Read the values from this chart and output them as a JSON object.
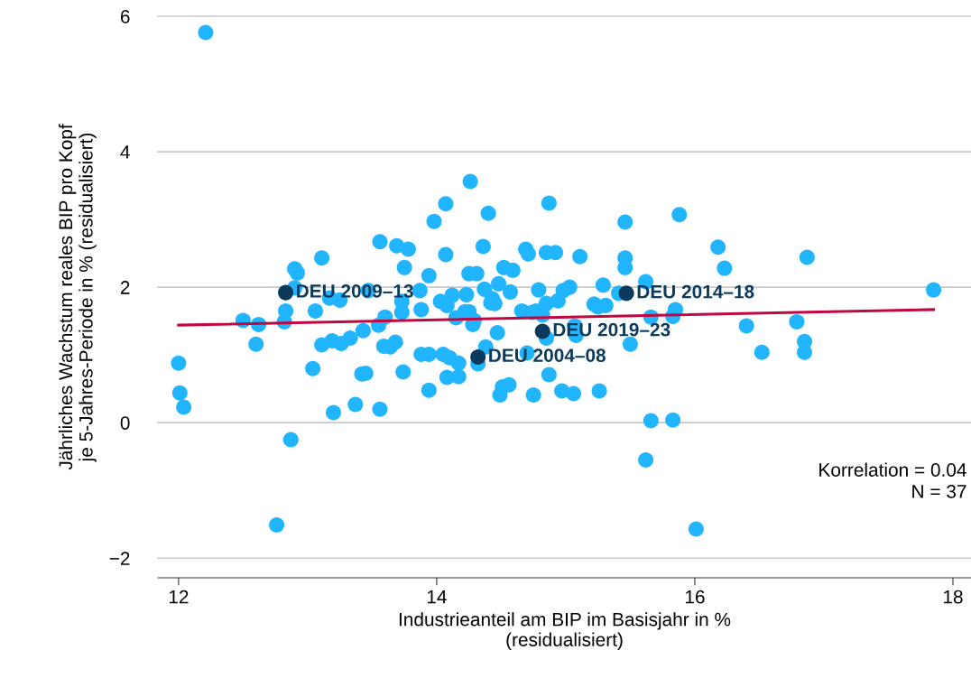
{
  "chart_data": {
    "type": "scatter",
    "xlabel": "Industrieanteil am BIP im Basisjahr in %\n(residualisiert)",
    "ylabel": "Jährliches Wachstum reales BIP pro Kopf\nje 5-Jahres-Periode in % (residualisiert)",
    "xlim": [
      11.84,
      18.14
    ],
    "xticks": [
      12,
      14,
      16,
      18
    ],
    "ylim": [
      -2.29,
      6
    ],
    "yticks": [
      {
        "value": -2,
        "label": "−2"
      },
      0,
      2,
      4,
      6
    ],
    "grid": "y",
    "marker": "circle",
    "series": [
      {
        "color": "#22b5ff",
        "x": [
          12.21,
          12.0,
          12.01,
          12.04,
          12.5,
          12.62,
          12.6,
          12.76,
          12.82,
          12.83,
          12.9,
          12.92,
          12.9,
          12.87,
          13.06,
          13.04,
          13.11,
          13.11,
          13.19,
          13.26,
          13.25,
          13.17,
          13.2,
          13.33,
          13.37,
          13.43,
          13.42,
          13.45,
          13.47,
          13.56,
          13.55,
          13.6,
          13.56,
          13.59,
          13.64,
          13.68,
          13.69,
          13.73,
          13.73,
          13.78,
          13.75,
          13.74,
          13.87,
          13.88,
          13.88,
          13.94,
          13.94,
          13.94,
          13.98,
          14.03,
          14.07,
          14.07,
          14.05,
          14.08,
          14.12,
          14.08,
          14.1,
          14.17,
          14.17,
          14.15,
          14.23,
          14.22,
          14.25,
          14.26,
          14.25,
          14.31,
          14.28,
          14.29,
          14.32,
          14.36,
          14.37,
          14.4,
          14.38,
          14.43,
          14.42,
          14.45,
          14.48,
          14.47,
          14.52,
          14.49,
          14.51,
          14.56,
          14.57,
          14.59,
          14.66,
          14.69,
          14.71,
          14.74,
          14.77,
          14.7,
          14.75,
          14.79,
          14.82,
          14.85,
          14.92,
          14.87,
          14.85,
          14.85,
          14.87,
          14.94,
          14.97,
          14.98,
          15.03,
          15.06,
          15.07,
          15.08,
          15.11,
          15.22,
          15.25,
          15.29,
          15.31,
          15.26,
          15.46,
          15.46,
          15.46,
          15.41,
          15.5,
          15.62,
          15.66,
          15.66,
          15.62,
          15.83,
          15.85,
          15.83,
          15.88,
          16.01,
          16.18,
          16.23,
          16.4,
          16.52,
          16.79,
          16.85,
          16.85,
          16.87,
          17.85
        ],
        "values": [
          5.76,
          0.88,
          0.44,
          0.23,
          1.51,
          1.45,
          1.16,
          -1.51,
          1.49,
          1.65,
          2.27,
          2.21,
          1.99,
          -0.25,
          1.65,
          0.8,
          2.43,
          1.15,
          1.21,
          1.17,
          1.81,
          1.84,
          0.15,
          1.25,
          0.27,
          1.36,
          0.72,
          0.73,
          1.95,
          2.67,
          1.44,
          1.56,
          0.2,
          1.13,
          1.12,
          1.19,
          2.61,
          1.79,
          1.63,
          2.56,
          2.29,
          0.75,
          1.95,
          1.67,
          1.01,
          1.01,
          2.17,
          0.48,
          2.97,
          1.79,
          3.23,
          2.48,
          1.01,
          1.73,
          1.88,
          0.67,
          0.96,
          0.88,
          0.68,
          1.55,
          1.89,
          1.64,
          1.64,
          3.56,
          2.2,
          2.2,
          1.45,
          1.51,
          0.87,
          2.6,
          1.97,
          3.09,
          1.12,
          1.83,
          1.77,
          1.76,
          2.05,
          1.33,
          2.29,
          0.41,
          0.53,
          0.56,
          1.93,
          2.25,
          1.65,
          2.56,
          2.49,
          1.63,
          1.65,
          1.03,
          0.41,
          1.96,
          1.59,
          2.51,
          2.51,
          3.24,
          1.76,
          1.25,
          0.71,
          1.8,
          0.47,
          1.95,
          2.0,
          0.43,
          1.43,
          1.29,
          2.45,
          1.75,
          1.71,
          2.03,
          1.73,
          0.47,
          2.96,
          2.43,
          2.29,
          1.91,
          1.16,
          2.08,
          1.56,
          0.03,
          -0.55,
          1.57,
          1.67,
          0.04,
          3.07,
          -1.57,
          2.59,
          2.28,
          1.43,
          1.04,
          1.49,
          1.2,
          1.04,
          2.44,
          1.96
        ]
      },
      {
        "color": "#0b3a5c",
        "x": [
          12.83,
          15.47,
          14.82,
          14.32
        ],
        "values": [
          1.92,
          1.91,
          1.35,
          0.97
        ]
      },
      {
        "type": "line",
        "color": "#c0073f",
        "marker": "none",
        "x": [
          12.0,
          17.85
        ],
        "values": [
          1.44,
          1.67
        ]
      }
    ],
    "annotations": [
      {
        "text": "DEU 2009–13",
        "x": 12.83,
        "y": 1.92
      },
      {
        "text": "DEU 2014–18",
        "x": 15.47,
        "y": 1.91
      },
      {
        "text": "DEU 2019–23",
        "x": 14.82,
        "y": 1.35
      },
      {
        "text": "DEU 2004–08",
        "x": 14.32,
        "y": 0.97
      },
      "Korrelation = 0.04\nN = 37"
    ]
  }
}
